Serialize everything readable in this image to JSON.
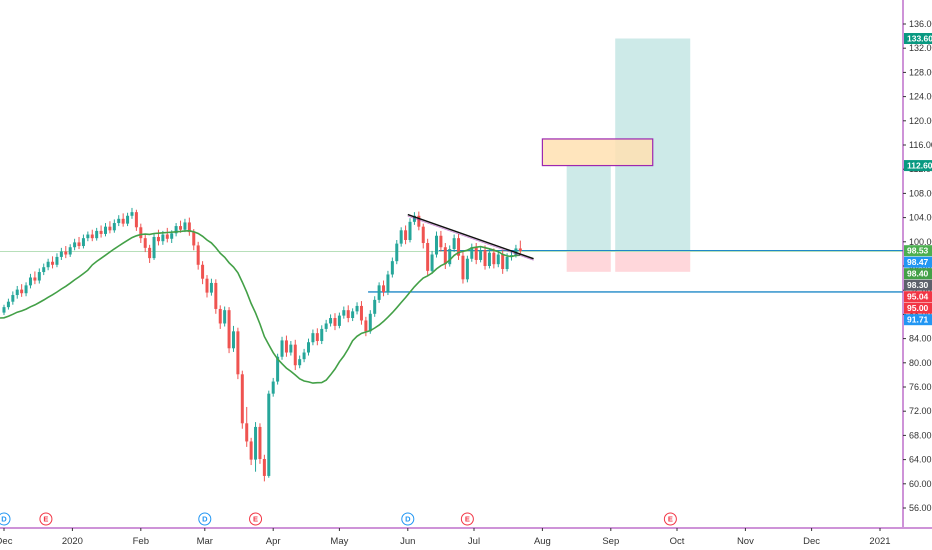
{
  "chart_data": {
    "type": "candlestick",
    "title": "",
    "xlabel": "",
    "ylabel": "",
    "ylim": [
      52,
      140
    ],
    "price_ticks": [
      "136.00",
      "132.00",
      "128.00",
      "124.00",
      "120.00",
      "116.00",
      "112.00",
      "108.00",
      "104.00",
      "100.00",
      "96.00",
      "92.00",
      "88.00",
      "84.00",
      "80.00",
      "76.00",
      "72.00",
      "68.00",
      "64.00",
      "60.00",
      "56.00"
    ],
    "time_labels": [
      {
        "date": "2019-12-01",
        "label": "Dec"
      },
      {
        "date": "2020-01-01",
        "label": "2020"
      },
      {
        "date": "2020-02-01",
        "label": "Feb"
      },
      {
        "date": "2020-03-01",
        "label": "Mar"
      },
      {
        "date": "2020-04-01",
        "label": "Apr"
      },
      {
        "date": "2020-05-01",
        "label": "May"
      },
      {
        "date": "2020-06-01",
        "label": "Jun"
      },
      {
        "date": "2020-07-01",
        "label": "Jul"
      },
      {
        "date": "2020-08-01",
        "label": "Aug"
      },
      {
        "date": "2020-09-01",
        "label": "Sep"
      },
      {
        "date": "2020-10-01",
        "label": "Oct"
      },
      {
        "date": "2020-11-01",
        "label": "Nov"
      },
      {
        "date": "2020-12-01",
        "label": "Dec"
      },
      {
        "date": "2021-01-01",
        "label": "2021"
      }
    ],
    "price_badges": [
      {
        "value": 133.6,
        "label": "133.60",
        "color": "#089981"
      },
      {
        "value": 112.6,
        "label": "112.60",
        "color": "#089981"
      },
      {
        "value": 98.53,
        "label": "98.53",
        "color": "#4caf50"
      },
      {
        "value": 98.47,
        "label": "98.47",
        "color": "#2196f3"
      },
      {
        "value": 98.4,
        "label": "98.40",
        "color": "#43a047"
      },
      {
        "value": 98.3,
        "label": "98.30",
        "color": "#5d606b"
      },
      {
        "value": 95.04,
        "label": "95.04",
        "color": "#f23645"
      },
      {
        "value": 95.0,
        "label": "95.00",
        "color": "#f23645"
      },
      {
        "value": 91.71,
        "label": "91.71",
        "color": "#2196f3"
      }
    ],
    "horizontal_lines": [
      {
        "value": 98.53,
        "color": "#1e88c7",
        "from": "2020-06-15"
      },
      {
        "value": 91.71,
        "color": "#1e88c7",
        "from": "2020-05-14"
      },
      {
        "value": 98.4,
        "color": "#b7dfb9",
        "from": "start"
      }
    ],
    "trendline": {
      "from": {
        "date": "2020-06-01",
        "value": 104.5
      },
      "to": {
        "date": "2020-07-28",
        "value": 97.2
      },
      "color": "#111111"
    },
    "positions": [
      {
        "start": "2020-08-12",
        "end": "2020-09-01",
        "entry": 98.47,
        "target": 112.6,
        "stop": 95.04
      },
      {
        "start": "2020-09-03",
        "end": "2020-10-07",
        "entry": 98.47,
        "target": 133.6,
        "stop": 95.04
      }
    ],
    "zone_box": {
      "start": "2020-08-01",
      "end": "2020-09-20",
      "top": 117.0,
      "bottom": 112.6
    },
    "events": [
      {
        "date": "2019-12-01",
        "letter": "D",
        "color": "#2196f3"
      },
      {
        "date": "2019-12-20",
        "letter": "E",
        "color": "#f23645"
      },
      {
        "date": "2020-03-01",
        "letter": "D",
        "color": "#2196f3"
      },
      {
        "date": "2020-03-24",
        "letter": "E",
        "color": "#f23645"
      },
      {
        "date": "2020-06-01",
        "letter": "D",
        "color": "#2196f3"
      },
      {
        "date": "2020-06-28",
        "letter": "E",
        "color": "#f23645"
      },
      {
        "date": "2020-09-28",
        "letter": "E",
        "color": "#f23645"
      }
    ],
    "colors": {
      "up": "#26a69a",
      "down": "#ef5350",
      "ma": "#43a047",
      "grid_border": "#9c27b0",
      "position_profit": "#b2dfdb",
      "position_loss": "#ffcdd2",
      "zone_fill": "#ffe0b2",
      "zone_stroke": "#9c27b0"
    },
    "candles": [
      [
        "2019-12-01",
        88.3,
        89.6,
        87.9,
        89.2
      ],
      [
        "2019-12-03",
        89.2,
        90.6,
        88.8,
        90.1
      ],
      [
        "2019-12-05",
        90.1,
        91.8,
        89.6,
        91.2
      ],
      [
        "2019-12-07",
        91.2,
        92.7,
        90.6,
        92.1
      ],
      [
        "2019-12-09",
        92.1,
        93.0,
        90.9,
        91.5
      ],
      [
        "2019-12-11",
        91.5,
        93.3,
        91.0,
        92.8
      ],
      [
        "2019-12-13",
        92.8,
        94.7,
        92.3,
        94.1
      ],
      [
        "2019-12-15",
        94.1,
        95.1,
        93.0,
        93.6
      ],
      [
        "2019-12-17",
        93.6,
        95.6,
        93.1,
        95.0
      ],
      [
        "2019-12-19",
        95.0,
        96.4,
        94.5,
        95.8
      ],
      [
        "2019-12-21",
        95.8,
        97.2,
        95.3,
        96.7
      ],
      [
        "2019-12-23",
        96.7,
        97.6,
        95.6,
        96.2
      ],
      [
        "2019-12-25",
        96.2,
        98.1,
        95.8,
        97.5
      ],
      [
        "2019-12-27",
        97.5,
        99.0,
        97.0,
        98.4
      ],
      [
        "2019-12-29",
        98.4,
        99.3,
        97.3,
        97.9
      ],
      [
        "2019-12-31",
        97.9,
        99.6,
        97.5,
        99.1
      ],
      [
        "2020-01-02",
        99.1,
        100.5,
        98.6,
        99.9
      ],
      [
        "2020-01-04",
        99.9,
        100.8,
        98.8,
        99.3
      ],
      [
        "2020-01-06",
        99.3,
        101.2,
        98.9,
        100.6
      ],
      [
        "2020-01-08",
        100.6,
        101.7,
        100.1,
        101.2
      ],
      [
        "2020-01-10",
        101.2,
        102.0,
        100.1,
        100.6
      ],
      [
        "2020-01-12",
        100.6,
        102.3,
        100.2,
        101.8
      ],
      [
        "2020-01-14",
        101.8,
        102.7,
        100.7,
        101.3
      ],
      [
        "2020-01-16",
        101.3,
        103.1,
        100.9,
        102.5
      ],
      [
        "2020-01-18",
        102.5,
        103.4,
        101.4,
        101.9
      ],
      [
        "2020-01-20",
        101.9,
        103.7,
        101.5,
        103.1
      ],
      [
        "2020-01-22",
        103.1,
        104.4,
        102.6,
        103.8
      ],
      [
        "2020-01-24",
        103.8,
        104.7,
        102.5,
        103.0
      ],
      [
        "2020-01-26",
        103.0,
        104.8,
        102.6,
        104.3
      ],
      [
        "2020-01-28",
        104.3,
        105.6,
        103.8,
        104.9
      ],
      [
        "2020-01-30",
        104.9,
        105.3,
        101.8,
        102.4
      ],
      [
        "2020-02-01",
        102.4,
        103.0,
        99.8,
        100.6
      ],
      [
        "2020-02-03",
        100.6,
        101.2,
        98.3,
        99.0
      ],
      [
        "2020-02-05",
        99.0,
        99.5,
        96.5,
        97.3
      ],
      [
        "2020-02-07",
        97.3,
        101.4,
        97.0,
        100.8
      ],
      [
        "2020-02-09",
        100.8,
        102.0,
        99.4,
        100.1
      ],
      [
        "2020-02-11",
        100.1,
        101.8,
        99.5,
        101.2
      ],
      [
        "2020-02-13",
        101.2,
        102.3,
        99.9,
        100.5
      ],
      [
        "2020-02-15",
        100.5,
        101.9,
        99.8,
        101.4
      ],
      [
        "2020-02-17",
        101.4,
        103.1,
        100.9,
        102.6
      ],
      [
        "2020-02-19",
        102.6,
        103.5,
        101.5,
        102.0
      ],
      [
        "2020-02-21",
        102.0,
        103.8,
        101.6,
        103.2
      ],
      [
        "2020-02-23",
        103.2,
        104.0,
        101.0,
        101.6
      ],
      [
        "2020-02-25",
        101.6,
        102.1,
        98.6,
        99.4
      ],
      [
        "2020-02-27",
        99.4,
        100.0,
        95.4,
        96.2
      ],
      [
        "2020-02-29",
        96.2,
        96.8,
        93.0,
        93.9
      ],
      [
        "2020-03-02",
        93.9,
        94.5,
        90.8,
        91.6
      ],
      [
        "2020-03-04",
        91.6,
        93.9,
        91.1,
        93.2
      ],
      [
        "2020-03-06",
        93.2,
        93.8,
        88.1,
        88.9
      ],
      [
        "2020-03-08",
        88.9,
        89.5,
        85.6,
        86.5
      ],
      [
        "2020-03-10",
        86.5,
        89.3,
        86.0,
        88.7
      ],
      [
        "2020-03-12",
        88.7,
        89.2,
        81.6,
        82.4
      ],
      [
        "2020-03-14",
        82.4,
        86.1,
        81.8,
        85.2
      ],
      [
        "2020-03-16",
        85.2,
        85.8,
        77.3,
        78.1
      ],
      [
        "2020-03-18",
        78.1,
        78.7,
        69.1,
        70.0
      ],
      [
        "2020-03-20",
        70.0,
        72.7,
        66.1,
        67.0
      ],
      [
        "2020-03-22",
        67.0,
        67.6,
        63.1,
        64.0
      ],
      [
        "2020-03-24",
        64.0,
        70.2,
        62.0,
        69.4
      ],
      [
        "2020-03-26",
        69.4,
        70.0,
        63.3,
        64.1
      ],
      [
        "2020-03-28",
        64.1,
        64.8,
        60.4,
        61.3
      ],
      [
        "2020-03-30",
        61.3,
        75.4,
        61.0,
        74.9
      ],
      [
        "2020-04-01",
        74.9,
        77.5,
        74.4,
        76.9
      ],
      [
        "2020-04-03",
        76.9,
        81.5,
        76.4,
        81.0
      ],
      [
        "2020-04-05",
        81.0,
        84.3,
        80.5,
        83.7
      ],
      [
        "2020-04-07",
        83.7,
        84.5,
        81.0,
        81.7
      ],
      [
        "2020-04-09",
        81.7,
        83.6,
        81.2,
        83.0
      ],
      [
        "2020-04-11",
        83.0,
        83.8,
        78.8,
        79.6
      ],
      [
        "2020-04-13",
        79.6,
        81.2,
        79.1,
        80.6
      ],
      [
        "2020-04-15",
        80.6,
        82.3,
        80.1,
        81.7
      ],
      [
        "2020-04-17",
        81.7,
        84.0,
        81.2,
        83.4
      ],
      [
        "2020-04-19",
        83.4,
        85.5,
        82.9,
        84.9
      ],
      [
        "2020-04-21",
        84.9,
        85.7,
        82.9,
        83.6
      ],
      [
        "2020-04-23",
        83.6,
        86.2,
        83.1,
        85.6
      ],
      [
        "2020-04-25",
        85.6,
        87.1,
        85.1,
        86.5
      ],
      [
        "2020-04-27",
        86.5,
        88.0,
        86.0,
        87.4
      ],
      [
        "2020-04-29",
        87.4,
        88.2,
        85.4,
        86.1
      ],
      [
        "2020-05-01",
        86.1,
        88.3,
        85.7,
        87.8
      ],
      [
        "2020-05-03",
        87.8,
        89.3,
        87.3,
        88.7
      ],
      [
        "2020-05-05",
        88.7,
        89.5,
        86.7,
        87.4
      ],
      [
        "2020-05-07",
        87.4,
        89.0,
        86.9,
        88.5
      ],
      [
        "2020-05-09",
        88.5,
        90.0,
        88.0,
        89.4
      ],
      [
        "2020-05-11",
        89.4,
        90.2,
        86.3,
        87.0
      ],
      [
        "2020-05-13",
        87.0,
        87.6,
        84.4,
        85.2
      ],
      [
        "2020-05-15",
        85.2,
        88.7,
        84.8,
        88.1
      ],
      [
        "2020-05-17",
        88.1,
        91.0,
        87.6,
        90.4
      ],
      [
        "2020-05-19",
        90.4,
        93.3,
        89.9,
        92.8
      ],
      [
        "2020-05-21",
        92.8,
        93.6,
        91.0,
        91.7
      ],
      [
        "2020-05-23",
        91.7,
        95.2,
        91.2,
        94.6
      ],
      [
        "2020-05-25",
        94.6,
        97.4,
        94.1,
        96.8
      ],
      [
        "2020-05-27",
        96.8,
        100.3,
        96.3,
        99.7
      ],
      [
        "2020-05-29",
        99.7,
        102.4,
        99.2,
        101.9
      ],
      [
        "2020-05-31",
        101.9,
        102.7,
        99.6,
        100.3
      ],
      [
        "2020-06-02",
        100.3,
        103.9,
        99.9,
        103.3
      ],
      [
        "2020-06-04",
        103.3,
        104.9,
        102.8,
        104.3
      ],
      [
        "2020-06-06",
        104.3,
        105.0,
        101.9,
        102.5
      ],
      [
        "2020-06-08",
        102.5,
        103.0,
        98.9,
        99.8
      ],
      [
        "2020-06-10",
        99.8,
        100.5,
        94.4,
        95.2
      ],
      [
        "2020-06-12",
        95.2,
        98.5,
        94.7,
        97.9
      ],
      [
        "2020-06-14",
        97.9,
        101.7,
        97.4,
        101.0
      ],
      [
        "2020-06-16",
        101.0,
        101.8,
        98.4,
        99.1
      ],
      [
        "2020-06-18",
        99.1,
        99.8,
        95.5,
        96.3
      ],
      [
        "2020-06-20",
        96.3,
        99.4,
        95.9,
        98.8
      ],
      [
        "2020-06-22",
        98.8,
        101.2,
        98.3,
        100.6
      ],
      [
        "2020-06-24",
        100.6,
        101.3,
        97.0,
        97.7
      ],
      [
        "2020-06-26",
        97.7,
        98.4,
        93.1,
        93.8
      ],
      [
        "2020-06-28",
        93.8,
        97.7,
        93.3,
        97.2
      ],
      [
        "2020-06-30",
        97.2,
        99.7,
        96.7,
        99.1
      ],
      [
        "2020-07-02",
        99.1,
        99.8,
        96.3,
        97.0
      ],
      [
        "2020-07-04",
        97.0,
        99.2,
        96.6,
        98.6
      ],
      [
        "2020-07-06",
        98.6,
        99.4,
        95.4,
        96.0
      ],
      [
        "2020-07-08",
        96.0,
        98.8,
        95.6,
        98.2
      ],
      [
        "2020-07-10",
        98.2,
        98.9,
        95.6,
        96.3
      ],
      [
        "2020-07-12",
        96.3,
        98.5,
        95.8,
        97.9
      ],
      [
        "2020-07-14",
        97.9,
        98.6,
        94.7,
        95.5
      ],
      [
        "2020-07-16",
        95.5,
        98.1,
        95.1,
        97.5
      ],
      [
        "2020-07-18",
        97.5,
        98.4,
        96.9,
        97.8
      ],
      [
        "2020-07-20",
        97.8,
        99.5,
        97.4,
        98.9
      ],
      [
        "2020-07-22",
        98.9,
        100.2,
        98.1,
        98.5
      ]
    ]
  }
}
